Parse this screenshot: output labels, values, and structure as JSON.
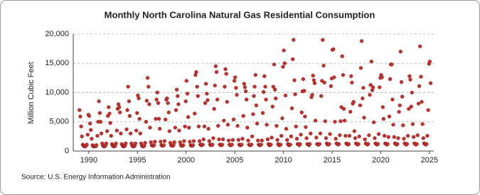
{
  "chart_data": {
    "type": "scatter",
    "title": "Monthly North Carolina Natural Gas Residential Consumption",
    "y_label": "Million Cubic Feet",
    "source": "Source: U.S. Energy Information Administration",
    "color": "#c8312b",
    "grid": true,
    "xlim": [
      1988.4,
      2025.45
    ],
    "xticks": [
      1990,
      1995,
      2000,
      2005,
      2010,
      2015,
      2020,
      2025
    ],
    "ylim": [
      0,
      20000
    ],
    "yticks": [
      0,
      {
        "value": 5000,
        "label": "5,000"
      },
      {
        "value": 10000,
        "label": "10,000"
      },
      {
        "value": 15000,
        "label": "15,000"
      },
      {
        "value": 20000,
        "label": "20,000"
      }
    ],
    "x": [
      1989.04,
      1989.13,
      1989.21,
      1989.29,
      1989.38,
      1989.46,
      1989.54,
      1989.63,
      1989.71,
      1989.79,
      1989.88,
      1989.96,
      1990.04,
      1990.13,
      1990.21,
      1990.29,
      1990.38,
      1990.46,
      1990.54,
      1990.63,
      1990.71,
      1990.79,
      1990.88,
      1990.96,
      1991.04,
      1991.13,
      1991.21,
      1991.29,
      1991.38,
      1991.46,
      1991.54,
      1991.63,
      1991.71,
      1991.79,
      1991.88,
      1991.96,
      1992.04,
      1992.13,
      1992.21,
      1992.29,
      1992.38,
      1992.46,
      1992.54,
      1992.63,
      1992.71,
      1992.79,
      1992.88,
      1992.96,
      1993.04,
      1993.13,
      1993.21,
      1993.29,
      1993.38,
      1993.46,
      1993.54,
      1993.63,
      1993.71,
      1993.79,
      1993.88,
      1993.96,
      1994.04,
      1994.13,
      1994.21,
      1994.29,
      1994.38,
      1994.46,
      1994.54,
      1994.63,
      1994.71,
      1994.79,
      1994.88,
      1994.96,
      1995.04,
      1995.13,
      1995.21,
      1995.29,
      1995.38,
      1995.46,
      1995.54,
      1995.63,
      1995.71,
      1995.79,
      1995.88,
      1995.96,
      1996.04,
      1996.13,
      1996.21,
      1996.29,
      1996.38,
      1996.46,
      1996.54,
      1996.63,
      1996.71,
      1996.79,
      1996.88,
      1996.96,
      1997.04,
      1997.13,
      1997.21,
      1997.29,
      1997.38,
      1997.46,
      1997.54,
      1997.63,
      1997.71,
      1997.79,
      1997.88,
      1997.96,
      1998.04,
      1998.13,
      1998.21,
      1998.29,
      1998.38,
      1998.46,
      1998.54,
      1998.63,
      1998.71,
      1998.79,
      1998.88,
      1998.96,
      1999.04,
      1999.13,
      1999.21,
      1999.29,
      1999.38,
      1999.46,
      1999.54,
      1999.63,
      1999.71,
      1999.79,
      1999.88,
      1999.96,
      2000.04,
      2000.13,
      2000.21,
      2000.29,
      2000.38,
      2000.46,
      2000.54,
      2000.63,
      2000.71,
      2000.79,
      2000.88,
      2000.96,
      2001.04,
      2001.13,
      2001.21,
      2001.29,
      2001.38,
      2001.46,
      2001.54,
      2001.63,
      2001.71,
      2001.79,
      2001.88,
      2001.96,
      2002.04,
      2002.13,
      2002.21,
      2002.29,
      2002.38,
      2002.46,
      2002.54,
      2002.63,
      2002.71,
      2002.79,
      2002.88,
      2002.96,
      2003.04,
      2003.13,
      2003.21,
      2003.29,
      2003.38,
      2003.46,
      2003.54,
      2003.63,
      2003.71,
      2003.79,
      2003.88,
      2003.96,
      2004.04,
      2004.13,
      2004.21,
      2004.29,
      2004.38,
      2004.46,
      2004.54,
      2004.63,
      2004.71,
      2004.79,
      2004.88,
      2004.96,
      2005.04,
      2005.13,
      2005.21,
      2005.29,
      2005.38,
      2005.46,
      2005.54,
      2005.63,
      2005.71,
      2005.79,
      2005.88,
      2005.96,
      2006.04,
      2006.13,
      2006.21,
      2006.29,
      2006.38,
      2006.46,
      2006.54,
      2006.63,
      2006.71,
      2006.79,
      2006.88,
      2006.96,
      2007.04,
      2007.13,
      2007.21,
      2007.29,
      2007.38,
      2007.46,
      2007.54,
      2007.63,
      2007.71,
      2007.79,
      2007.88,
      2007.96,
      2008.04,
      2008.13,
      2008.21,
      2008.29,
      2008.38,
      2008.46,
      2008.54,
      2008.63,
      2008.71,
      2008.79,
      2008.88,
      2008.96,
      2009.04,
      2009.13,
      2009.21,
      2009.29,
      2009.38,
      2009.46,
      2009.54,
      2009.63,
      2009.71,
      2009.79,
      2009.88,
      2009.96,
      2010.04,
      2010.13,
      2010.21,
      2010.29,
      2010.38,
      2010.46,
      2010.54,
      2010.63,
      2010.71,
      2010.79,
      2010.88,
      2010.96,
      2011.04,
      2011.13,
      2011.21,
      2011.29,
      2011.38,
      2011.46,
      2011.54,
      2011.63,
      2011.71,
      2011.79,
      2011.88,
      2011.96,
      2012.04,
      2012.13,
      2012.21,
      2012.29,
      2012.38,
      2012.46,
      2012.54,
      2012.63,
      2012.71,
      2012.79,
      2012.88,
      2012.96,
      2013.04,
      2013.13,
      2013.21,
      2013.29,
      2013.38,
      2013.46,
      2013.54,
      2013.63,
      2013.71,
      2013.79,
      2013.88,
      2013.96,
      2014.04,
      2014.13,
      2014.21,
      2014.29,
      2014.38,
      2014.46,
      2014.54,
      2014.63,
      2014.71,
      2014.79,
      2014.88,
      2014.96,
      2015.04,
      2015.13,
      2015.21,
      2015.29,
      2015.38,
      2015.46,
      2015.54,
      2015.63,
      2015.71,
      2015.79,
      2015.88,
      2015.96,
      2016.04,
      2016.13,
      2016.21,
      2016.29,
      2016.38,
      2016.46,
      2016.54,
      2016.63,
      2016.71,
      2016.79,
      2016.88,
      2016.96,
      2017.04,
      2017.13,
      2017.21,
      2017.29,
      2017.38,
      2017.46,
      2017.54,
      2017.63,
      2017.71,
      2017.79,
      2017.88,
      2017.96,
      2018.04,
      2018.13,
      2018.21,
      2018.29,
      2018.38,
      2018.46,
      2018.54,
      2018.63,
      2018.71,
      2018.79,
      2018.88,
      2018.96,
      2019.04,
      2019.13,
      2019.21,
      2019.29,
      2019.38,
      2019.46,
      2019.54,
      2019.63,
      2019.71,
      2019.79,
      2019.88,
      2019.96,
      2020.04,
      2020.13,
      2020.21,
      2020.29,
      2020.38,
      2020.46,
      2020.54,
      2020.63,
      2020.71,
      2020.79,
      2020.88,
      2020.96,
      2021.04,
      2021.13,
      2021.21,
      2021.29,
      2021.38,
      2021.46,
      2021.54,
      2021.63,
      2021.71,
      2021.79,
      2021.88,
      2021.96,
      2022.04,
      2022.13,
      2022.21,
      2022.29,
      2022.38,
      2022.46,
      2022.54,
      2022.63,
      2022.71,
      2022.79,
      2022.88,
      2022.96,
      2023.04,
      2023.13,
      2023.21,
      2023.29,
      2023.38,
      2023.46,
      2023.54,
      2023.63,
      2023.71,
      2023.79,
      2023.88,
      2023.96,
      2024.04,
      2024.13,
      2024.21,
      2024.29,
      2024.38,
      2024.46,
      2024.54,
      2024.63,
      2024.71,
      2024.79,
      2024.88,
      2024.96,
      2025.04,
      2025.13
    ],
    "y": [
      7000,
      5900,
      4200,
      2500,
      1100,
      900,
      800,
      800,
      900,
      1100,
      2800,
      6200,
      6000,
      4700,
      3600,
      2100,
      1000,
      800,
      800,
      800,
      800,
      1000,
      2600,
      5000,
      8500,
      6500,
      5000,
      3000,
      1300,
      900,
      800,
      800,
      900,
      1300,
      3400,
      6000,
      7500,
      6400,
      4800,
      2600,
      1200,
      900,
      800,
      800,
      900,
      1300,
      3500,
      7200,
      8000,
      7500,
      6600,
      3000,
      1200,
      900,
      800,
      800,
      900,
      1300,
      3700,
      7000,
      11000,
      8500,
      6000,
      3000,
      1300,
      900,
      800,
      800,
      900,
      1300,
      3500,
      6500,
      9500,
      9000,
      5500,
      3000,
      1300,
      900,
      800,
      800,
      900,
      1400,
      5000,
      8600,
      12500,
      11000,
      8000,
      4000,
      1500,
      1000,
      900,
      900,
      1000,
      1600,
      5500,
      8800,
      10000,
      8200,
      5500,
      3800,
      1600,
      1000,
      900,
      900,
      1000,
      1700,
      5400,
      8800,
      9000,
      8200,
      6600,
      3400,
      1400,
      1000,
      900,
      900,
      1000,
      1500,
      4000,
      7000,
      10500,
      9400,
      8000,
      3500,
      1500,
      1000,
      900,
      900,
      1000,
      1700,
      4200,
      8500,
      12000,
      9800,
      5800,
      4000,
      1600,
      1000,
      900,
      900,
      1000,
      1700,
      6400,
      13000,
      13500,
      11000,
      9400,
      4200,
      1700,
      1100,
      1000,
      1000,
      1100,
      2000,
      4200,
      8200,
      11500,
      9800,
      8700,
      3800,
      1700,
      1100,
      1000,
      1000,
      1100,
      2200,
      7200,
      11200,
      14500,
      13500,
      8800,
      4300,
      2000,
      1100,
      1000,
      1000,
      1100,
      2000,
      5200,
      11000,
      14000,
      13200,
      8400,
      4500,
      1800,
      1100,
      1000,
      1000,
      1100,
      1900,
      5400,
      12000,
      12600,
      10800,
      9600,
      4300,
      1900,
      1100,
      1000,
      1000,
      1100,
      2100,
      6000,
      11500,
      10900,
      10200,
      8800,
      4000,
      1800,
      1100,
      1000,
      1000,
      1100,
      2500,
      6300,
      9400,
      11000,
      13000,
      7800,
      4700,
      1800,
      1100,
      1000,
      1000,
      1100,
      1800,
      6500,
      10100,
      12800,
      11000,
      8800,
      4500,
      2000,
      1200,
      1000,
      1000,
      1100,
      2300,
      7600,
      11000,
      14800,
      10500,
      9000,
      4300,
      1900,
      1200,
      1000,
      1000,
      1100,
      2600,
      5600,
      14400,
      17200,
      15000,
      9500,
      3800,
      1900,
      1200,
      1000,
      1000,
      1100,
      2500,
      7300,
      15700,
      19000,
      12100,
      9700,
      4200,
      2100,
      1200,
      1100,
      1000,
      1200,
      2800,
      6600,
      10200,
      12300,
      10300,
      5900,
      4100,
      2200,
      1200,
      1100,
      1000,
      1200,
      3000,
      9200,
      9600,
      12900,
      12100,
      11600,
      5200,
      2300,
      1200,
      1100,
      1100,
      1200,
      3000,
      9400,
      12000,
      19000,
      14600,
      11700,
      5100,
      2200,
      1300,
      1100,
      1100,
      1200,
      2900,
      11100,
      12400,
      17300,
      17400,
      12600,
      5000,
      2100,
      1300,
      1200,
      1100,
      1200,
      2700,
      5100,
      7500,
      16200,
      13000,
      7200,
      5200,
      2600,
      1300,
      1200,
      1100,
      1200,
      2600,
      6700,
      12800,
      11700,
      8100,
      8400,
      3400,
      2200,
      1300,
      1200,
      1100,
      1200,
      2500,
      7800,
      14200,
      18800,
      9000,
      10800,
      5700,
      2000,
      1300,
      1200,
      1100,
      1200,
      2700,
      9600,
      11300,
      15300,
      10400,
      10900,
      4900,
      2200,
      1300,
      1200,
      1100,
      1200,
      2900,
      10900,
      12500,
      13000,
      12600,
      7500,
      5500,
      2600,
      1300,
      1200,
      1100,
      1200,
      2400,
      5900,
      12300,
      14800,
      14800,
      8800,
      4500,
      2400,
      1300,
      1200,
      1100,
      1200,
      2200,
      6700,
      7800,
      17000,
      11800,
      9300,
      4400,
      2100,
      1300,
      1200,
      1100,
      1200,
      2600,
      7200,
      12800,
      12200,
      7600,
      10000,
      4600,
      2400,
      1300,
      1200,
      1100,
      1200,
      2700,
      8100,
      11100,
      17900,
      12700,
      8400,
      4600,
      2200,
      1300,
      1200,
      1100,
      1200,
      2600,
      7000,
      14900,
      15300,
      11600
    ]
  }
}
